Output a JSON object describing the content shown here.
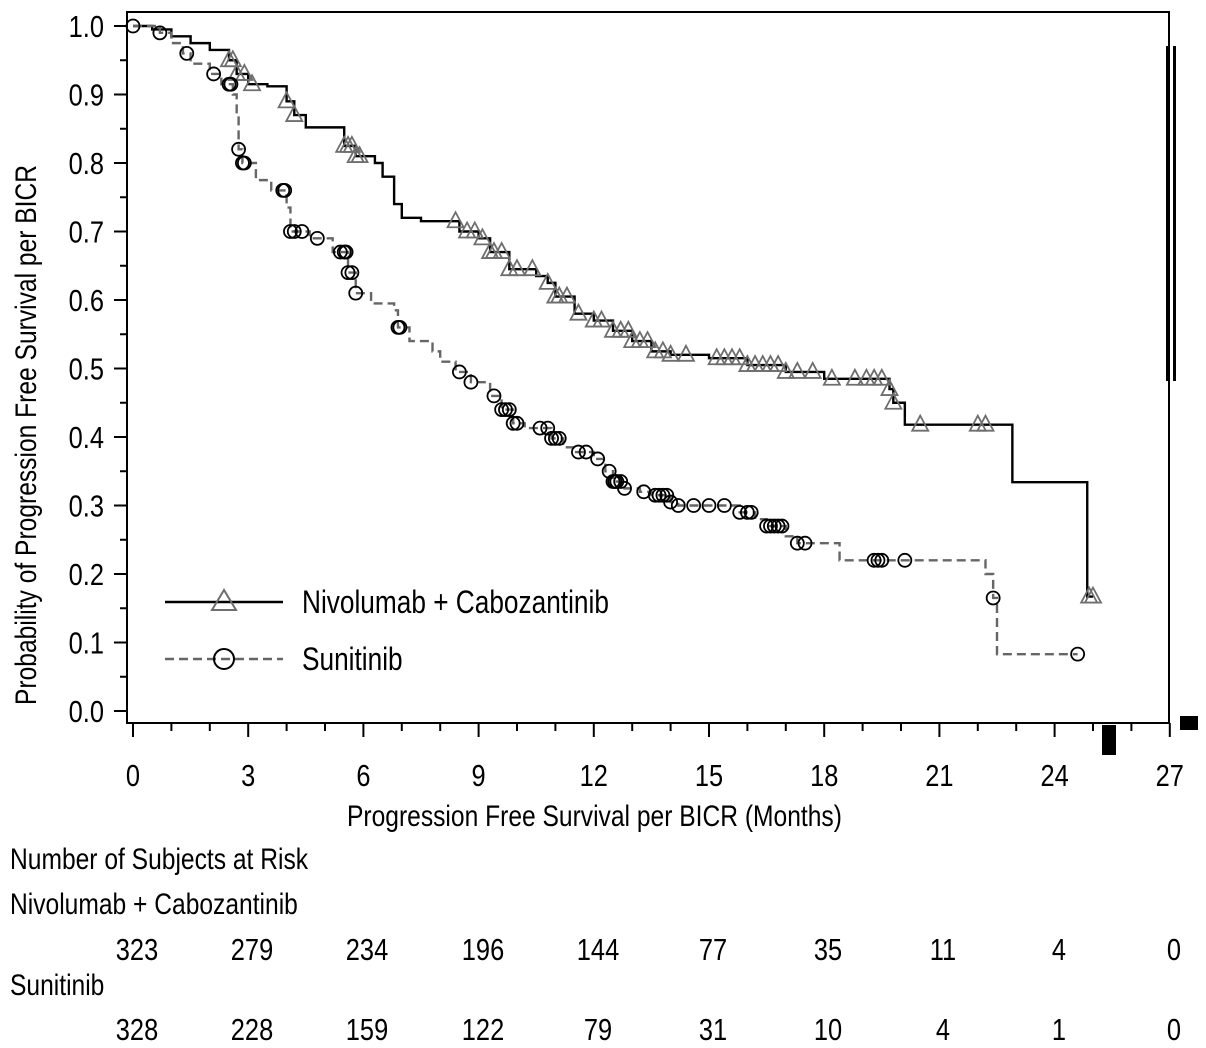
{
  "chart_data": {
    "type": "line",
    "xlabel": "Progression Free Survival per BICR (Months)",
    "ylabel": "Probability of Progression Free Survival per BICR",
    "xlim": [
      0,
      27
    ],
    "ylim": [
      0.0,
      1.0
    ],
    "x_ticks": [
      "0",
      "3",
      "6",
      "9",
      "12",
      "15",
      "18",
      "21",
      "24",
      "27"
    ],
    "y_ticks": [
      "0.0",
      "0.1",
      "0.2",
      "0.3",
      "0.4",
      "0.5",
      "0.6",
      "0.7",
      "0.8",
      "0.9",
      "1.0"
    ],
    "legend_position": "lower-left",
    "series": [
      {
        "name": "Nivolumab + Cabozantinib",
        "line_style": "solid",
        "marker": "triangle",
        "color": "#000000",
        "marker_color": "#6e6e6e",
        "steps": [
          [
            0,
            1.0
          ],
          [
            0.5,
            0.995
          ],
          [
            1.0,
            0.985
          ],
          [
            1.5,
            0.975
          ],
          [
            2.0,
            0.965
          ],
          [
            2.5,
            0.95
          ],
          [
            2.7,
            0.93
          ],
          [
            3.0,
            0.915
          ],
          [
            3.5,
            0.912
          ],
          [
            4.0,
            0.89
          ],
          [
            4.2,
            0.87
          ],
          [
            4.5,
            0.852
          ],
          [
            5.5,
            0.825
          ],
          [
            5.8,
            0.81
          ],
          [
            6.3,
            0.8
          ],
          [
            6.5,
            0.78
          ],
          [
            6.8,
            0.74
          ],
          [
            7.0,
            0.72
          ],
          [
            7.5,
            0.715
          ],
          [
            8.5,
            0.7
          ],
          [
            9.0,
            0.69
          ],
          [
            9.3,
            0.67
          ],
          [
            9.8,
            0.645
          ],
          [
            10.5,
            0.635
          ],
          [
            10.8,
            0.625
          ],
          [
            11.0,
            0.605
          ],
          [
            11.5,
            0.58
          ],
          [
            12.0,
            0.57
          ],
          [
            12.5,
            0.555
          ],
          [
            13.0,
            0.54
          ],
          [
            13.5,
            0.525
          ],
          [
            14.0,
            0.52
          ],
          [
            15.0,
            0.515
          ],
          [
            16.0,
            0.505
          ],
          [
            17.0,
            0.495
          ],
          [
            18.0,
            0.485
          ],
          [
            19.7,
            0.47
          ],
          [
            19.8,
            0.45
          ],
          [
            20.1,
            0.418
          ],
          [
            22.9,
            0.334
          ],
          [
            24.85,
            0.167
          ]
        ],
        "end_x": 25.0,
        "censor_x": [
          2.5,
          2.6,
          2.7,
          2.9,
          3.1,
          4.0,
          4.2,
          5.5,
          5.6,
          5.7,
          5.8,
          5.9,
          8.4,
          8.7,
          8.9,
          9.1,
          9.3,
          9.4,
          9.6,
          9.8,
          10.0,
          10.4,
          10.8,
          11.0,
          11.1,
          11.3,
          11.6,
          12.0,
          12.2,
          12.5,
          12.7,
          12.9,
          13.0,
          13.2,
          13.4,
          13.6,
          13.8,
          14.0,
          14.4,
          15.2,
          15.4,
          15.6,
          15.8,
          16.0,
          16.2,
          16.4,
          16.6,
          16.8,
          17.0,
          17.3,
          17.7,
          18.2,
          18.8,
          19.1,
          19.3,
          19.5,
          19.7,
          19.8,
          20.5,
          22.0,
          22.2,
          24.9,
          25.0
        ]
      },
      {
        "name": "Sunitinib",
        "line_style": "dashed",
        "marker": "circle",
        "color": "#666666",
        "marker_color": "#000000",
        "steps": [
          [
            0,
            1.0
          ],
          [
            0.7,
            0.99
          ],
          [
            1.0,
            0.975
          ],
          [
            1.3,
            0.96
          ],
          [
            1.5,
            0.945
          ],
          [
            2.0,
            0.93
          ],
          [
            2.3,
            0.915
          ],
          [
            2.6,
            0.9
          ],
          [
            2.7,
            0.87
          ],
          [
            2.75,
            0.82
          ],
          [
            2.85,
            0.8
          ],
          [
            3.2,
            0.775
          ],
          [
            3.6,
            0.76
          ],
          [
            4.0,
            0.735
          ],
          [
            4.1,
            0.7
          ],
          [
            4.6,
            0.69
          ],
          [
            5.2,
            0.67
          ],
          [
            5.6,
            0.64
          ],
          [
            5.8,
            0.61
          ],
          [
            6.2,
            0.595
          ],
          [
            6.8,
            0.585
          ],
          [
            6.9,
            0.56
          ],
          [
            7.2,
            0.54
          ],
          [
            7.8,
            0.525
          ],
          [
            8.0,
            0.51
          ],
          [
            8.4,
            0.495
          ],
          [
            8.8,
            0.48
          ],
          [
            9.3,
            0.46
          ],
          [
            9.6,
            0.44
          ],
          [
            9.9,
            0.42
          ],
          [
            10.2,
            0.413
          ],
          [
            10.9,
            0.398
          ],
          [
            11.2,
            0.385
          ],
          [
            11.5,
            0.378
          ],
          [
            12.0,
            0.368
          ],
          [
            12.3,
            0.35
          ],
          [
            12.5,
            0.335
          ],
          [
            12.8,
            0.325
          ],
          [
            13.2,
            0.32
          ],
          [
            13.5,
            0.315
          ],
          [
            14.0,
            0.305
          ],
          [
            14.2,
            0.3
          ],
          [
            15.8,
            0.29
          ],
          [
            16.2,
            0.28
          ],
          [
            16.5,
            0.27
          ],
          [
            17.0,
            0.255
          ],
          [
            17.3,
            0.245
          ],
          [
            18.4,
            0.22
          ],
          [
            22.2,
            0.2
          ],
          [
            22.4,
            0.165
          ],
          [
            22.5,
            0.083
          ]
        ],
        "end_x": 24.6,
        "censor_x": [
          0.0,
          0.7,
          1.4,
          2.1,
          2.5,
          2.55,
          2.75,
          2.85,
          2.9,
          3.9,
          3.95,
          4.1,
          4.2,
          4.4,
          4.8,
          5.4,
          5.5,
          5.55,
          5.6,
          5.7,
          5.8,
          6.9,
          6.95,
          8.5,
          8.8,
          9.4,
          9.6,
          9.7,
          9.8,
          9.9,
          10.0,
          10.6,
          10.8,
          10.9,
          11.0,
          11.1,
          11.6,
          11.8,
          12.1,
          12.4,
          12.5,
          12.55,
          12.6,
          12.7,
          12.8,
          13.3,
          13.6,
          13.7,
          13.8,
          13.9,
          14.0,
          14.2,
          14.6,
          15.0,
          15.4,
          15.8,
          16.0,
          16.1,
          16.5,
          16.6,
          16.7,
          16.8,
          16.9,
          17.3,
          17.5,
          19.3,
          19.4,
          19.5,
          20.1,
          22.4,
          24.6
        ]
      }
    ]
  },
  "risk_table": {
    "title": "Number of Subjects at Risk",
    "rows": [
      {
        "label": "Nivolumab + Cabozantinib",
        "values": [
          "323",
          "279",
          "234",
          "196",
          "144",
          "77",
          "35",
          "11",
          "4",
          "0"
        ]
      },
      {
        "label": "Sunitinib",
        "values": [
          "328",
          "228",
          "159",
          "122",
          "79",
          "31",
          "10",
          "4",
          "1",
          "0"
        ]
      }
    ]
  }
}
